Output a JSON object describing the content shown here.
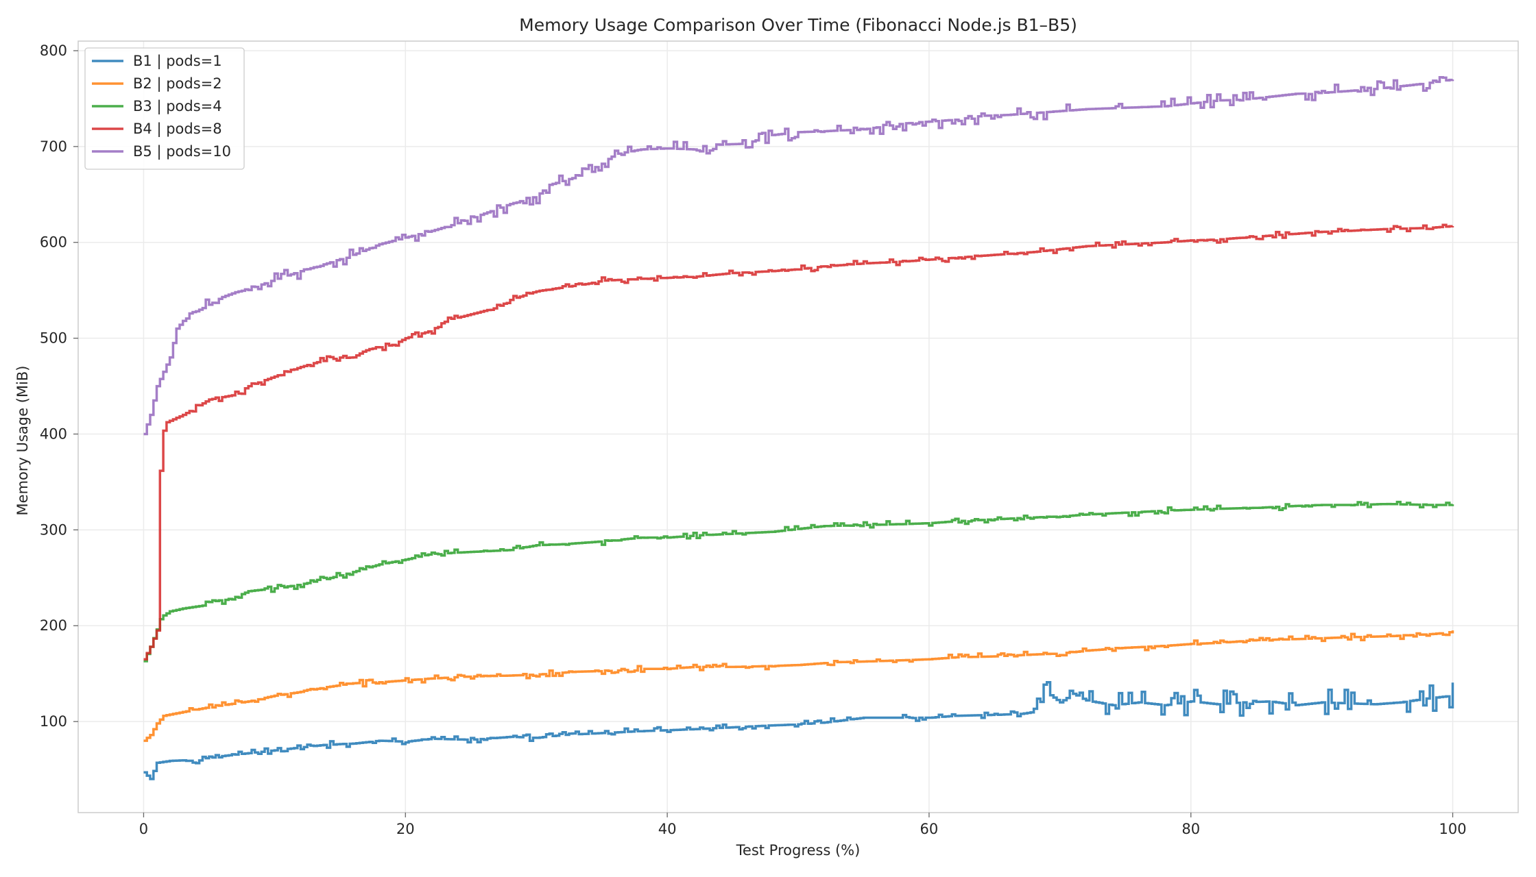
{
  "chart_data": {
    "type": "line",
    "title": "Memory Usage Comparison Over Time (Fibonacci Node.js B1–B5)",
    "xlabel": "Test Progress (%)",
    "ylabel": "Memory Usage (MiB)",
    "xlim": [
      -5,
      105
    ],
    "ylim": [
      5,
      810
    ],
    "xticks": [
      0,
      20,
      40,
      60,
      80,
      100
    ],
    "yticks": [
      100,
      200,
      300,
      400,
      500,
      600,
      700,
      800
    ],
    "grid": true,
    "legend_position": "top-left",
    "line_style": "step",
    "series": [
      {
        "name": "B1 | pods=1",
        "color": "#1f77b4",
        "points": [
          [
            0,
            47
          ],
          [
            0.5,
            40
          ],
          [
            1,
            57
          ],
          [
            2,
            59
          ],
          [
            4,
            60
          ],
          [
            6,
            64
          ],
          [
            8,
            67
          ],
          [
            10,
            70
          ],
          [
            12,
            73
          ],
          [
            14,
            76
          ],
          [
            16,
            77
          ],
          [
            18,
            80
          ],
          [
            20,
            79
          ],
          [
            22,
            82
          ],
          [
            25,
            81
          ],
          [
            28,
            84
          ],
          [
            30,
            83
          ],
          [
            32,
            86
          ],
          [
            35,
            88
          ],
          [
            38,
            90
          ],
          [
            40,
            91
          ],
          [
            42,
            92
          ],
          [
            45,
            94
          ],
          [
            48,
            96
          ],
          [
            50,
            97
          ],
          [
            52,
            99
          ],
          [
            55,
            104
          ],
          [
            58,
            104
          ],
          [
            60,
            104
          ],
          [
            62,
            106
          ],
          [
            65,
            107
          ],
          [
            67,
            108
          ],
          [
            68,
            110
          ],
          [
            69,
            130
          ],
          [
            70,
            120
          ],
          [
            71,
            129
          ],
          [
            72,
            122
          ],
          [
            74,
            117
          ],
          [
            76,
            120
          ],
          [
            78,
            117
          ],
          [
            80,
            121
          ],
          [
            82,
            118
          ],
          [
            84,
            120
          ],
          [
            86,
            121
          ],
          [
            88,
            117
          ],
          [
            90,
            120
          ],
          [
            92,
            119
          ],
          [
            94,
            118
          ],
          [
            96,
            120
          ],
          [
            98,
            124
          ],
          [
            100,
            127
          ]
        ]
      },
      {
        "name": "B2 | pods=2",
        "color": "#ff7f0e",
        "points": [
          [
            0,
            80
          ],
          [
            0.5,
            86
          ],
          [
            1,
            98
          ],
          [
            1.5,
            106
          ],
          [
            3,
            110
          ],
          [
            5,
            115
          ],
          [
            8,
            121
          ],
          [
            10,
            127
          ],
          [
            12,
            131
          ],
          [
            14,
            136
          ],
          [
            16,
            140
          ],
          [
            18,
            141
          ],
          [
            20,
            143
          ],
          [
            22,
            145
          ],
          [
            25,
            147
          ],
          [
            28,
            148
          ],
          [
            30,
            149
          ],
          [
            33,
            152
          ],
          [
            36,
            153
          ],
          [
            38,
            155
          ],
          [
            40,
            155
          ],
          [
            42,
            157
          ],
          [
            45,
            157
          ],
          [
            48,
            158
          ],
          [
            50,
            159
          ],
          [
            53,
            162
          ],
          [
            56,
            163
          ],
          [
            58,
            164
          ],
          [
            60,
            165
          ],
          [
            62,
            167
          ],
          [
            65,
            168
          ],
          [
            68,
            170
          ],
          [
            70,
            171
          ],
          [
            72,
            174
          ],
          [
            75,
            177
          ],
          [
            78,
            179
          ],
          [
            80,
            181
          ],
          [
            82,
            182
          ],
          [
            85,
            185
          ],
          [
            88,
            186
          ],
          [
            90,
            187
          ],
          [
            92,
            188
          ],
          [
            95,
            189
          ],
          [
            98,
            191
          ],
          [
            100,
            193
          ]
        ]
      },
      {
        "name": "B3 | pods=4",
        "color": "#2ca02c",
        "points": [
          [
            0,
            163
          ],
          [
            0.5,
            178
          ],
          [
            1,
            196
          ],
          [
            1.3,
            209
          ],
          [
            2,
            215
          ],
          [
            3,
            218
          ],
          [
            5,
            222
          ],
          [
            7,
            230
          ],
          [
            8,
            236
          ],
          [
            10,
            239
          ],
          [
            12,
            243
          ],
          [
            14,
            249
          ],
          [
            16,
            256
          ],
          [
            18,
            264
          ],
          [
            20,
            269
          ],
          [
            22,
            275
          ],
          [
            25,
            277
          ],
          [
            28,
            279
          ],
          [
            30,
            284
          ],
          [
            32,
            285
          ],
          [
            35,
            288
          ],
          [
            38,
            292
          ],
          [
            40,
            292
          ],
          [
            42,
            294
          ],
          [
            45,
            296
          ],
          [
            48,
            298
          ],
          [
            50,
            301
          ],
          [
            52,
            304
          ],
          [
            55,
            305
          ],
          [
            58,
            306
          ],
          [
            60,
            307
          ],
          [
            62,
            309
          ],
          [
            65,
            311
          ],
          [
            68,
            313
          ],
          [
            70,
            314
          ],
          [
            72,
            316
          ],
          [
            75,
            318
          ],
          [
            78,
            320
          ],
          [
            80,
            321
          ],
          [
            82,
            322
          ],
          [
            85,
            323
          ],
          [
            88,
            325
          ],
          [
            90,
            326
          ],
          [
            92,
            326
          ],
          [
            95,
            327
          ],
          [
            98,
            326
          ],
          [
            100,
            326
          ]
        ]
      },
      {
        "name": "B4 | pods=8",
        "color": "#d62728",
        "points": [
          [
            0,
            165
          ],
          [
            0.5,
            178
          ],
          [
            1,
            195
          ],
          [
            1.3,
            395
          ],
          [
            1.7,
            412
          ],
          [
            3,
            420
          ],
          [
            4,
            428
          ],
          [
            5,
            436
          ],
          [
            7,
            441
          ],
          [
            8,
            450
          ],
          [
            10,
            460
          ],
          [
            12,
            470
          ],
          [
            14,
            478
          ],
          [
            16,
            480
          ],
          [
            17,
            488
          ],
          [
            19,
            493
          ],
          [
            20,
            500
          ],
          [
            22,
            508
          ],
          [
            23,
            518
          ],
          [
            25,
            525
          ],
          [
            27,
            532
          ],
          [
            28,
            540
          ],
          [
            30,
            549
          ],
          [
            32,
            553
          ],
          [
            34,
            557
          ],
          [
            35,
            560
          ],
          [
            38,
            562
          ],
          [
            40,
            563
          ],
          [
            42,
            564
          ],
          [
            45,
            568
          ],
          [
            48,
            570
          ],
          [
            50,
            572
          ],
          [
            52,
            575
          ],
          [
            55,
            578
          ],
          [
            58,
            580
          ],
          [
            60,
            582
          ],
          [
            62,
            584
          ],
          [
            65,
            587
          ],
          [
            68,
            590
          ],
          [
            70,
            593
          ],
          [
            72,
            596
          ],
          [
            75,
            598
          ],
          [
            78,
            600
          ],
          [
            80,
            602
          ],
          [
            82,
            603
          ],
          [
            85,
            606
          ],
          [
            88,
            609
          ],
          [
            90,
            611
          ],
          [
            92,
            612
          ],
          [
            95,
            614
          ],
          [
            98,
            615
          ],
          [
            100,
            617
          ]
        ]
      },
      {
        "name": "B5 | pods=10",
        "color": "#9467bd",
        "points": [
          [
            0,
            400
          ],
          [
            0.5,
            420
          ],
          [
            1,
            450
          ],
          [
            1.5,
            465
          ],
          [
            2,
            480
          ],
          [
            2.5,
            510
          ],
          [
            3,
            518
          ],
          [
            4,
            528
          ],
          [
            5,
            535
          ],
          [
            6,
            543
          ],
          [
            7,
            548
          ],
          [
            8,
            551
          ],
          [
            10,
            561
          ],
          [
            12,
            570
          ],
          [
            14,
            578
          ],
          [
            16,
            587
          ],
          [
            18,
            598
          ],
          [
            20,
            605
          ],
          [
            22,
            612
          ],
          [
            24,
            620
          ],
          [
            26,
            630
          ],
          [
            28,
            640
          ],
          [
            30,
            648
          ],
          [
            31,
            660
          ],
          [
            33,
            668
          ],
          [
            35,
            682
          ],
          [
            36,
            692
          ],
          [
            38,
            697
          ],
          [
            40,
            698
          ],
          [
            42,
            697
          ],
          [
            43,
            693
          ],
          [
            44,
            702
          ],
          [
            46,
            703
          ],
          [
            48,
            712
          ],
          [
            50,
            715
          ],
          [
            52,
            716
          ],
          [
            55,
            718
          ],
          [
            58,
            724
          ],
          [
            60,
            726
          ],
          [
            62,
            728
          ],
          [
            64,
            732
          ],
          [
            66,
            733
          ],
          [
            68,
            735
          ],
          [
            70,
            737
          ],
          [
            72,
            739
          ],
          [
            74,
            740
          ],
          [
            76,
            741
          ],
          [
            78,
            742
          ],
          [
            80,
            745
          ],
          [
            82,
            748
          ],
          [
            84,
            749
          ],
          [
            86,
            752
          ],
          [
            88,
            755
          ],
          [
            90,
            756
          ],
          [
            92,
            758
          ],
          [
            94,
            760
          ],
          [
            96,
            763
          ],
          [
            98,
            766
          ],
          [
            100,
            770
          ]
        ]
      }
    ]
  }
}
